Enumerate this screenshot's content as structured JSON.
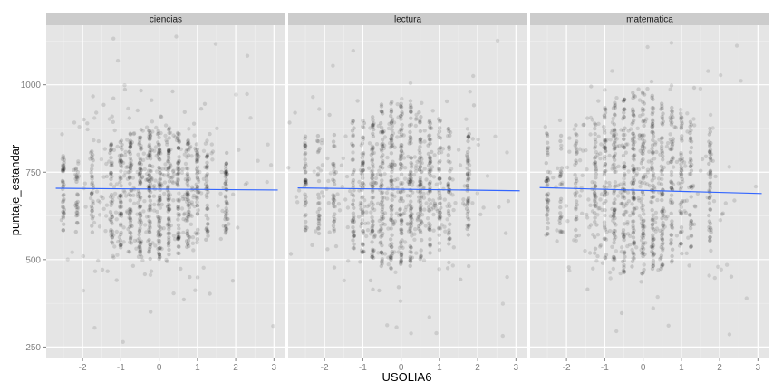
{
  "chart_data": {
    "type": "scatter",
    "facet_by": "area",
    "xlabel": "USOLIA6",
    "ylabel": "puntaje_estandar",
    "x_ticks": [
      -2,
      -1,
      0,
      1,
      2,
      3
    ],
    "y_ticks": [
      250,
      500,
      750,
      1000
    ],
    "xlim": [
      -2.95,
      3.3
    ],
    "ylim": [
      220,
      1170
    ],
    "grid": true,
    "point_color": "#000000",
    "point_alpha": 0.15,
    "line_color": "#3366ff",
    "panel_background": "#e5e5e5",
    "strip_background": "#cccccc",
    "facets": [
      {
        "label": "ciencias",
        "fit_line": {
          "x": [
            -2.7,
            3.1
          ],
          "y": [
            704,
            699
          ]
        },
        "dense_y_range": [
          500,
          880
        ],
        "column_x": [
          -2.5,
          -2.15,
          -1.75,
          -1.25,
          -1.0,
          -0.75,
          -0.5,
          -0.25,
          0.0,
          0.25,
          0.5,
          0.75,
          1.0,
          1.25,
          1.75
        ]
      },
      {
        "label": "lectura",
        "fit_line": {
          "x": [
            -2.7,
            3.1
          ],
          "y": [
            705,
            697
          ]
        },
        "dense_y_range": [
          470,
          960
        ],
        "column_x": [
          -2.5,
          -2.15,
          -1.75,
          -1.25,
          -1.0,
          -0.75,
          -0.5,
          -0.25,
          0.0,
          0.25,
          0.5,
          0.75,
          1.0,
          1.25,
          1.75
        ]
      },
      {
        "label": "matematica",
        "fit_line": {
          "x": [
            -2.7,
            3.1
          ],
          "y": [
            706,
            689
          ]
        },
        "dense_y_range": [
          450,
          980
        ],
        "column_x": [
          -2.5,
          -2.15,
          -1.75,
          -1.25,
          -1.0,
          -0.75,
          -0.5,
          -0.25,
          0.0,
          0.25,
          0.5,
          0.75,
          1.0,
          1.25,
          1.75
        ]
      }
    ]
  }
}
